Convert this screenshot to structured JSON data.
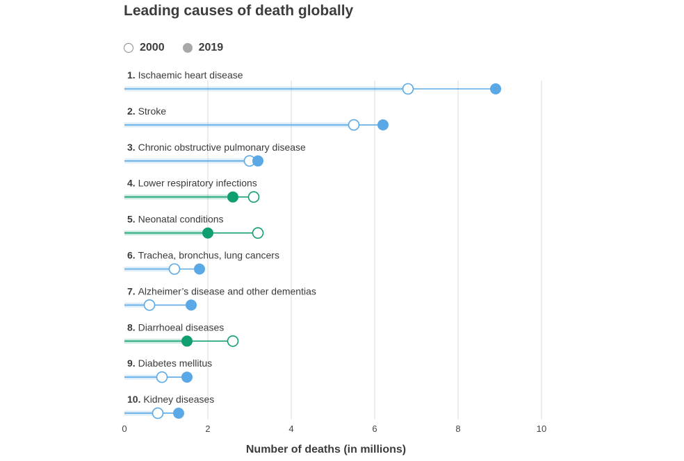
{
  "chart_data": {
    "type": "dumbbell",
    "title": "Leading causes of death globally",
    "xlabel": "Number of deaths (in millions)",
    "ylabel": "",
    "xlim": [
      0,
      10
    ],
    "xticks": [
      "0",
      "2",
      "4",
      "6",
      "8",
      "10"
    ],
    "grid": true,
    "legend_position": "top-left",
    "series": [
      {
        "name": "2000",
        "marker": "open"
      },
      {
        "name": "2019",
        "marker": "filled"
      }
    ],
    "colors": {
      "increase": "#5aa9e6",
      "decrease": "#0f9e72",
      "grid": "#d9d9d9"
    },
    "categories": [
      {
        "rank": "1.",
        "label": "Ischaemic heart disease",
        "v2000": 6.8,
        "v2019": 8.9
      },
      {
        "rank": "2.",
        "label": "Stroke",
        "v2000": 5.5,
        "v2019": 6.2
      },
      {
        "rank": "3.",
        "label": "Chronic obstructive pulmonary disease",
        "v2000": 3.0,
        "v2019": 3.2
      },
      {
        "rank": "4.",
        "label": "Lower respiratory infections",
        "v2000": 3.1,
        "v2019": 2.6
      },
      {
        "rank": "5.",
        "label": "Neonatal conditions",
        "v2000": 3.2,
        "v2019": 2.0
      },
      {
        "rank": "6.",
        "label": "Trachea, bronchus, lung cancers",
        "v2000": 1.2,
        "v2019": 1.8
      },
      {
        "rank": "7.",
        "label": "Alzheimer’s disease and other dementias",
        "v2000": 0.6,
        "v2019": 1.6
      },
      {
        "rank": "8.",
        "label": "Diarrhoeal diseases",
        "v2000": 2.6,
        "v2019": 1.5
      },
      {
        "rank": "9.",
        "label": "Diabetes mellitus",
        "v2000": 0.9,
        "v2019": 1.5
      },
      {
        "rank": "10.",
        "label": "Kidney diseases",
        "v2000": 0.8,
        "v2019": 1.3
      }
    ]
  }
}
